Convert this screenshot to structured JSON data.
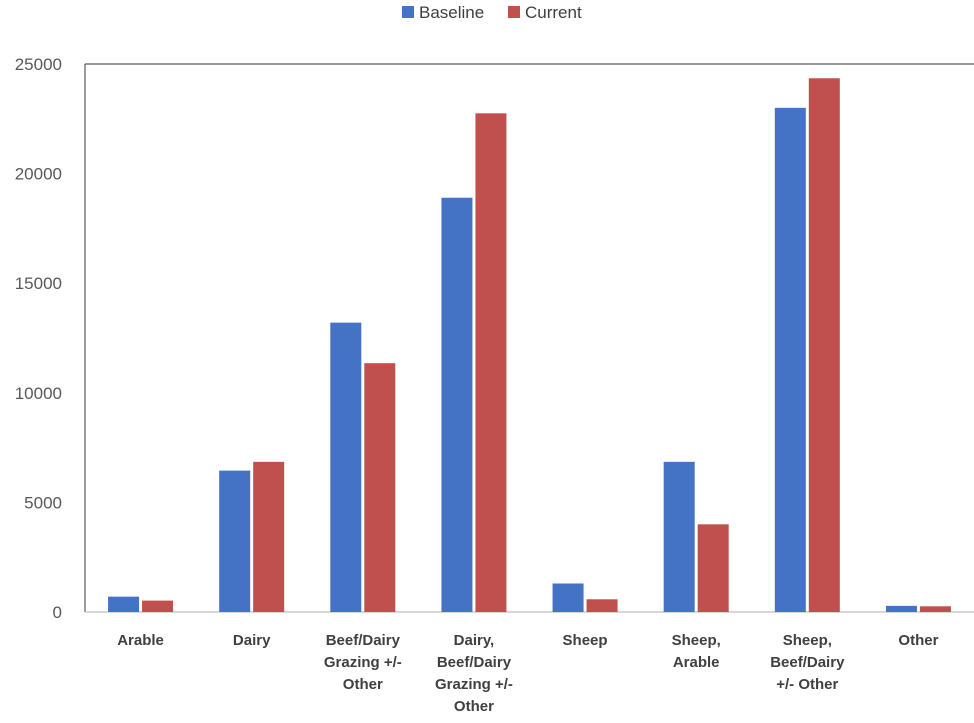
{
  "chart_data": {
    "type": "bar",
    "categories": [
      [
        "Arable"
      ],
      [
        "Dairy"
      ],
      [
        "Beef/Dairy",
        "Grazing +/-",
        "Other"
      ],
      [
        "Dairy,",
        "Beef/Dairy",
        "Grazing +/-",
        "Other"
      ],
      [
        "Sheep"
      ],
      [
        "Sheep,",
        "Arable"
      ],
      [
        "Sheep,",
        "Beef/Dairy",
        "+/- Other"
      ],
      [
        "Other"
      ]
    ],
    "series": [
      {
        "name": "Baseline",
        "color": "#4472c4",
        "values": [
          700,
          6450,
          13200,
          18900,
          1300,
          6850,
          23000,
          280
        ]
      },
      {
        "name": "Current",
        "color": "#c0504d",
        "values": [
          520,
          6850,
          11350,
          22750,
          580,
          4000,
          24350,
          260
        ]
      }
    ],
    "ylim": [
      0,
      25000
    ],
    "yticks": [
      "0",
      "5000",
      "10000",
      "15000",
      "20000",
      "25000"
    ],
    "title": "",
    "xlabel": "",
    "ylabel": "",
    "grid": false,
    "legend": "top-center"
  }
}
